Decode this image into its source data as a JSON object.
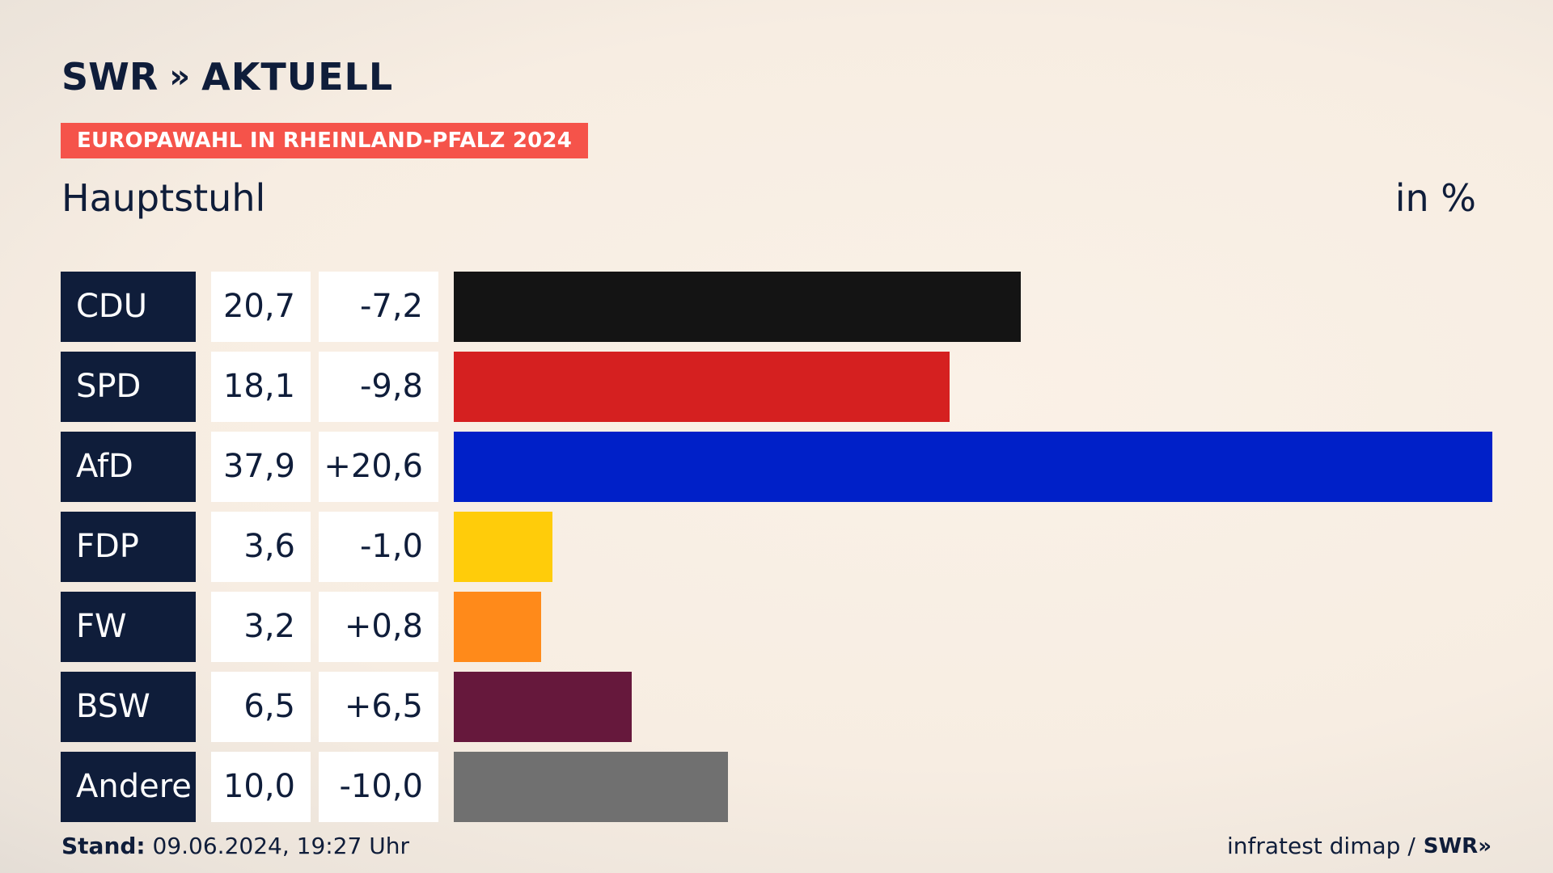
{
  "header": {
    "logo_brand": "SWR",
    "logo_chevrons": "»",
    "logo_name": "AKTUELL",
    "badge": "EUROPAWAHL IN RHEINLAND-PFALZ 2024",
    "place": "Hauptstuhl",
    "unit": "in %"
  },
  "colors": {
    "navy": "#0f1d3a",
    "badge": "#f5534a"
  },
  "chart_data": {
    "type": "bar",
    "categories": [
      "CDU",
      "SPD",
      "AfD",
      "FDP",
      "FW",
      "BSW",
      "Andere"
    ],
    "values": [
      20.7,
      18.1,
      37.9,
      3.6,
      3.2,
      6.5,
      10.0
    ],
    "labels": [
      "20,7",
      "18,1",
      "37,9",
      "3,6",
      "3,2",
      "6,5",
      "10,0"
    ],
    "changes": [
      -7.2,
      -9.8,
      20.6,
      -1.0,
      0.8,
      6.5,
      -10.0
    ],
    "change_labels": [
      "-7,2",
      "-9,8",
      "+20,6",
      "-1,0",
      "+0,8",
      "+6,5",
      "-10,0"
    ],
    "colors": [
      "#141414",
      "#d52020",
      "#0020c8",
      "#ffcc0a",
      "#ff8a1a",
      "#66183c",
      "#707070"
    ],
    "orientation": "horizontal",
    "xlim": [
      0,
      37.9
    ]
  },
  "footer": {
    "stand_label": "Stand:",
    "stand_value": " 09.06.2024, 19:27 Uhr",
    "source": "infratest dimap /",
    "source_logo": "SWR",
    "source_chev": "»"
  }
}
